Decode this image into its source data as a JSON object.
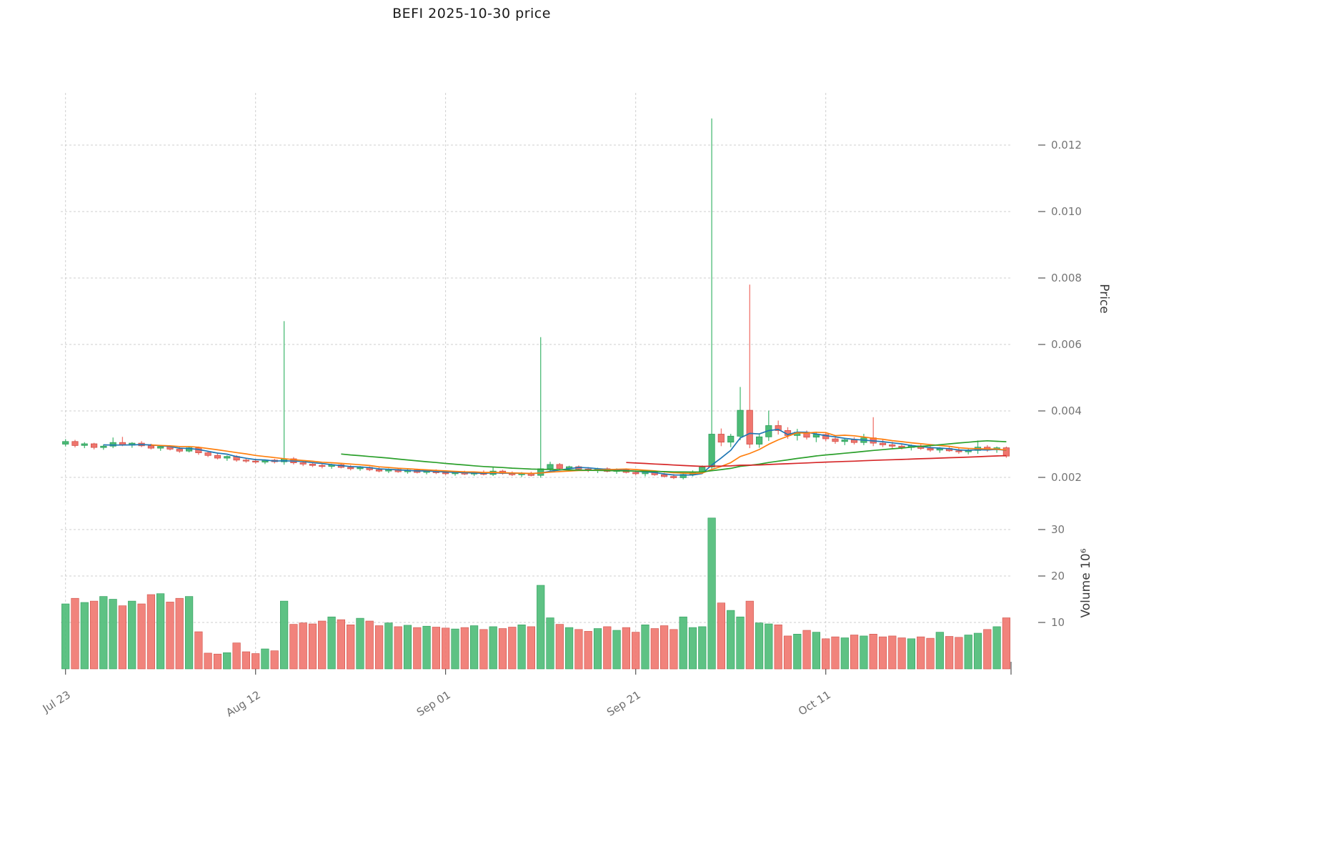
{
  "axes": {
    "price_label": "Price",
    "volume_label": "Volume  10⁶"
  },
  "chart_data": {
    "type": "candlestick+volume",
    "title": "BEFI  2025-10-30  price",
    "ylabel": "Price",
    "ylabel_volume": "Volume 10^6",
    "legend_position": "none",
    "grid": true,
    "price_axis_range": [
      0.00116,
      0.01357
    ],
    "volume_axis_range": [
      0,
      34
    ],
    "x_ticks": [
      {
        "index": 0,
        "label": "Jul 23"
      },
      {
        "index": 20,
        "label": "Aug 12"
      },
      {
        "index": 40,
        "label": "Sep 01"
      },
      {
        "index": 60,
        "label": "Sep 21"
      },
      {
        "index": 80,
        "label": "Oct 11"
      }
    ],
    "price_ticks": [
      {
        "value": 0.002,
        "label": "0.002"
      },
      {
        "value": 0.004,
        "label": "0.004"
      },
      {
        "value": 0.006,
        "label": "0.006"
      },
      {
        "value": 0.008,
        "label": "0.008"
      },
      {
        "value": 0.01,
        "label": "0.010"
      },
      {
        "value": 0.012,
        "label": "0.012"
      }
    ],
    "volume_ticks": [
      {
        "value": 10,
        "label": "10"
      },
      {
        "value": 20,
        "label": "20"
      },
      {
        "value": 30,
        "label": "30"
      }
    ],
    "moving_averages": [
      {
        "period": 5,
        "color": "#1f77b4"
      },
      {
        "period": 10,
        "color": "#ff7f0e"
      },
      {
        "period": 30,
        "color": "#2ca02c"
      },
      {
        "period": 60,
        "color": "#d62728"
      }
    ],
    "colors": {
      "up": "#4cbb77",
      "down": "#f0766e",
      "up_edge": "#2e9e5b",
      "down_edge": "#d05048",
      "grid": "#cfcfcf",
      "tick_text": "#757575"
    },
    "candles_format": [
      "open",
      "high",
      "low",
      "close",
      "volume_millions"
    ],
    "candles": [
      [
        0.003,
        0.00315,
        0.00293,
        0.00308,
        14.0
      ],
      [
        0.00308,
        0.00313,
        0.0029,
        0.00296,
        15.2
      ],
      [
        0.00296,
        0.00306,
        0.00288,
        0.00301,
        14.3
      ],
      [
        0.00301,
        0.00304,
        0.00284,
        0.0029,
        14.6
      ],
      [
        0.0029,
        0.00299,
        0.00283,
        0.00294,
        15.6
      ],
      [
        0.00294,
        0.0032,
        0.00288,
        0.00305,
        15.0
      ],
      [
        0.00305,
        0.00322,
        0.00294,
        0.00297,
        13.6
      ],
      [
        0.00297,
        0.00306,
        0.00289,
        0.00303,
        14.6
      ],
      [
        0.00303,
        0.00309,
        0.00291,
        0.00295,
        14.0
      ],
      [
        0.00295,
        0.00301,
        0.00284,
        0.00288,
        16.0
      ],
      [
        0.00288,
        0.00296,
        0.0028,
        0.00293,
        16.2
      ],
      [
        0.00293,
        0.00297,
        0.00281,
        0.00285,
        14.4
      ],
      [
        0.00285,
        0.00291,
        0.00274,
        0.00279,
        15.2
      ],
      [
        0.00279,
        0.00292,
        0.00275,
        0.00289,
        15.6
      ],
      [
        0.00289,
        0.00293,
        0.00268,
        0.00274,
        8.0
      ],
      [
        0.00274,
        0.0028,
        0.00261,
        0.00266,
        3.4
      ],
      [
        0.00266,
        0.00272,
        0.00254,
        0.00258,
        3.2
      ],
      [
        0.00258,
        0.00266,
        0.0025,
        0.00263,
        3.5
      ],
      [
        0.00263,
        0.00267,
        0.00247,
        0.00252,
        5.6
      ],
      [
        0.00252,
        0.00259,
        0.00244,
        0.00249,
        3.7
      ],
      [
        0.00249,
        0.00256,
        0.00241,
        0.00246,
        3.3
      ],
      [
        0.00246,
        0.00254,
        0.0024,
        0.00252,
        4.3
      ],
      [
        0.00252,
        0.00256,
        0.00242,
        0.00247,
        3.9
      ],
      [
        0.00247,
        0.0067,
        0.00238,
        0.00256,
        14.6
      ],
      [
        0.00256,
        0.00261,
        0.00239,
        0.00244,
        9.6
      ],
      [
        0.00244,
        0.00251,
        0.00234,
        0.0024,
        9.9
      ],
      [
        0.0024,
        0.00246,
        0.00231,
        0.00236,
        9.7
      ],
      [
        0.00236,
        0.00243,
        0.00227,
        0.00233,
        10.3
      ],
      [
        0.00233,
        0.00241,
        0.00226,
        0.00238,
        11.2
      ],
      [
        0.00238,
        0.00242,
        0.00227,
        0.0023,
        10.6
      ],
      [
        0.0023,
        0.00237,
        0.00221,
        0.00226,
        9.5
      ],
      [
        0.00226,
        0.00234,
        0.0022,
        0.0023,
        10.9
      ],
      [
        0.0023,
        0.00233,
        0.00219,
        0.00223,
        10.3
      ],
      [
        0.00223,
        0.0023,
        0.00215,
        0.00219,
        9.3
      ],
      [
        0.00219,
        0.00227,
        0.00213,
        0.00224,
        9.9
      ],
      [
        0.00224,
        0.00228,
        0.00214,
        0.00217,
        9.1
      ],
      [
        0.00217,
        0.00225,
        0.00211,
        0.00222,
        9.4
      ],
      [
        0.00222,
        0.00226,
        0.00212,
        0.00215,
        8.9
      ],
      [
        0.00215,
        0.00223,
        0.00209,
        0.0022,
        9.2
      ],
      [
        0.0022,
        0.00224,
        0.0021,
        0.00214,
        9.0
      ],
      [
        0.00214,
        0.00221,
        0.00207,
        0.00211,
        8.8
      ],
      [
        0.00211,
        0.00219,
        0.00205,
        0.00216,
        8.6
      ],
      [
        0.00216,
        0.0022,
        0.00207,
        0.0021,
        8.9
      ],
      [
        0.0021,
        0.00218,
        0.00204,
        0.00215,
        9.3
      ],
      [
        0.00215,
        0.00221,
        0.00206,
        0.00209,
        8.5
      ],
      [
        0.00209,
        0.00231,
        0.00204,
        0.00219,
        9.1
      ],
      [
        0.00219,
        0.00223,
        0.00208,
        0.00212,
        8.7
      ],
      [
        0.00212,
        0.00218,
        0.00204,
        0.00208,
        9.0
      ],
      [
        0.00208,
        0.00216,
        0.00201,
        0.00213,
        9.5
      ],
      [
        0.00213,
        0.00217,
        0.00203,
        0.00206,
        9.1
      ],
      [
        0.00206,
        0.00622,
        0.00199,
        0.00226,
        18.0
      ],
      [
        0.00226,
        0.00247,
        0.00215,
        0.00239,
        11.0
      ],
      [
        0.00239,
        0.00243,
        0.00221,
        0.00227,
        9.6
      ],
      [
        0.00227,
        0.00235,
        0.00219,
        0.00232,
        8.9
      ],
      [
        0.00232,
        0.00236,
        0.00221,
        0.00225,
        8.5
      ],
      [
        0.00225,
        0.00231,
        0.00216,
        0.00221,
        8.1
      ],
      [
        0.00221,
        0.00229,
        0.00213,
        0.00226,
        8.7
      ],
      [
        0.00226,
        0.0023,
        0.00215,
        0.00218,
        9.1
      ],
      [
        0.00218,
        0.00227,
        0.00211,
        0.00223,
        8.3
      ],
      [
        0.00223,
        0.00227,
        0.00212,
        0.00215,
        8.9
      ],
      [
        0.00215,
        0.00221,
        0.00207,
        0.00211,
        7.9
      ],
      [
        0.00211,
        0.00219,
        0.00203,
        0.00216,
        9.5
      ],
      [
        0.00216,
        0.0022,
        0.00205,
        0.00208,
        8.7
      ],
      [
        0.00208,
        0.00214,
        0.00199,
        0.00203,
        9.3
      ],
      [
        0.00203,
        0.0021,
        0.00195,
        0.00199,
        8.5
      ],
      [
        0.00199,
        0.00213,
        0.00194,
        0.00209,
        11.2
      ],
      [
        0.00209,
        0.00221,
        0.00203,
        0.00216,
        8.9
      ],
      [
        0.00216,
        0.00236,
        0.00211,
        0.00231,
        9.1
      ],
      [
        0.00231,
        0.0128,
        0.00224,
        0.0033,
        32.5
      ],
      [
        0.0033,
        0.00347,
        0.00294,
        0.00306,
        14.2
      ],
      [
        0.00306,
        0.00331,
        0.00291,
        0.00324,
        12.6
      ],
      [
        0.00324,
        0.00472,
        0.00312,
        0.00402,
        11.2
      ],
      [
        0.00402,
        0.0078,
        0.00288,
        0.003,
        14.6
      ],
      [
        0.003,
        0.00331,
        0.00289,
        0.00322,
        9.9
      ],
      [
        0.00322,
        0.00401,
        0.0031,
        0.00356,
        9.7
      ],
      [
        0.00356,
        0.00371,
        0.00329,
        0.00341,
        9.5
      ],
      [
        0.00341,
        0.00351,
        0.00316,
        0.00326,
        7.1
      ],
      [
        0.00326,
        0.00346,
        0.00311,
        0.00336,
        7.5
      ],
      [
        0.00336,
        0.00341,
        0.00314,
        0.00321,
        8.3
      ],
      [
        0.00321,
        0.00336,
        0.00306,
        0.00329,
        7.9
      ],
      [
        0.00329,
        0.00333,
        0.00309,
        0.00316,
        6.5
      ],
      [
        0.00316,
        0.00326,
        0.00301,
        0.00308,
        6.9
      ],
      [
        0.00308,
        0.00319,
        0.00297,
        0.00313,
        6.7
      ],
      [
        0.00313,
        0.00321,
        0.00299,
        0.00305,
        7.3
      ],
      [
        0.00305,
        0.00331,
        0.00297,
        0.00319,
        7.1
      ],
      [
        0.00319,
        0.00381,
        0.00294,
        0.00303,
        7.5
      ],
      [
        0.00303,
        0.00313,
        0.00291,
        0.00298,
        6.9
      ],
      [
        0.00298,
        0.00307,
        0.00287,
        0.00294,
        7.1
      ],
      [
        0.00294,
        0.00302,
        0.00284,
        0.0029,
        6.7
      ],
      [
        0.0029,
        0.00299,
        0.00281,
        0.00295,
        6.5
      ],
      [
        0.00295,
        0.00299,
        0.00283,
        0.00287,
        6.9
      ],
      [
        0.00287,
        0.00294,
        0.00277,
        0.00282,
        6.6
      ],
      [
        0.00282,
        0.00291,
        0.00274,
        0.00287,
        7.9
      ],
      [
        0.00287,
        0.00293,
        0.00277,
        0.0028,
        7.0
      ],
      [
        0.0028,
        0.00288,
        0.00271,
        0.00277,
        6.8
      ],
      [
        0.00277,
        0.00286,
        0.00269,
        0.00281,
        7.3
      ],
      [
        0.00281,
        0.00311,
        0.00271,
        0.00291,
        7.7
      ],
      [
        0.00291,
        0.00297,
        0.00277,
        0.00283,
        8.5
      ],
      [
        0.00283,
        0.00293,
        0.00274,
        0.00289,
        9.1
      ],
      [
        0.00289,
        0.00293,
        0.00259,
        0.00264,
        11.0
      ]
    ]
  }
}
